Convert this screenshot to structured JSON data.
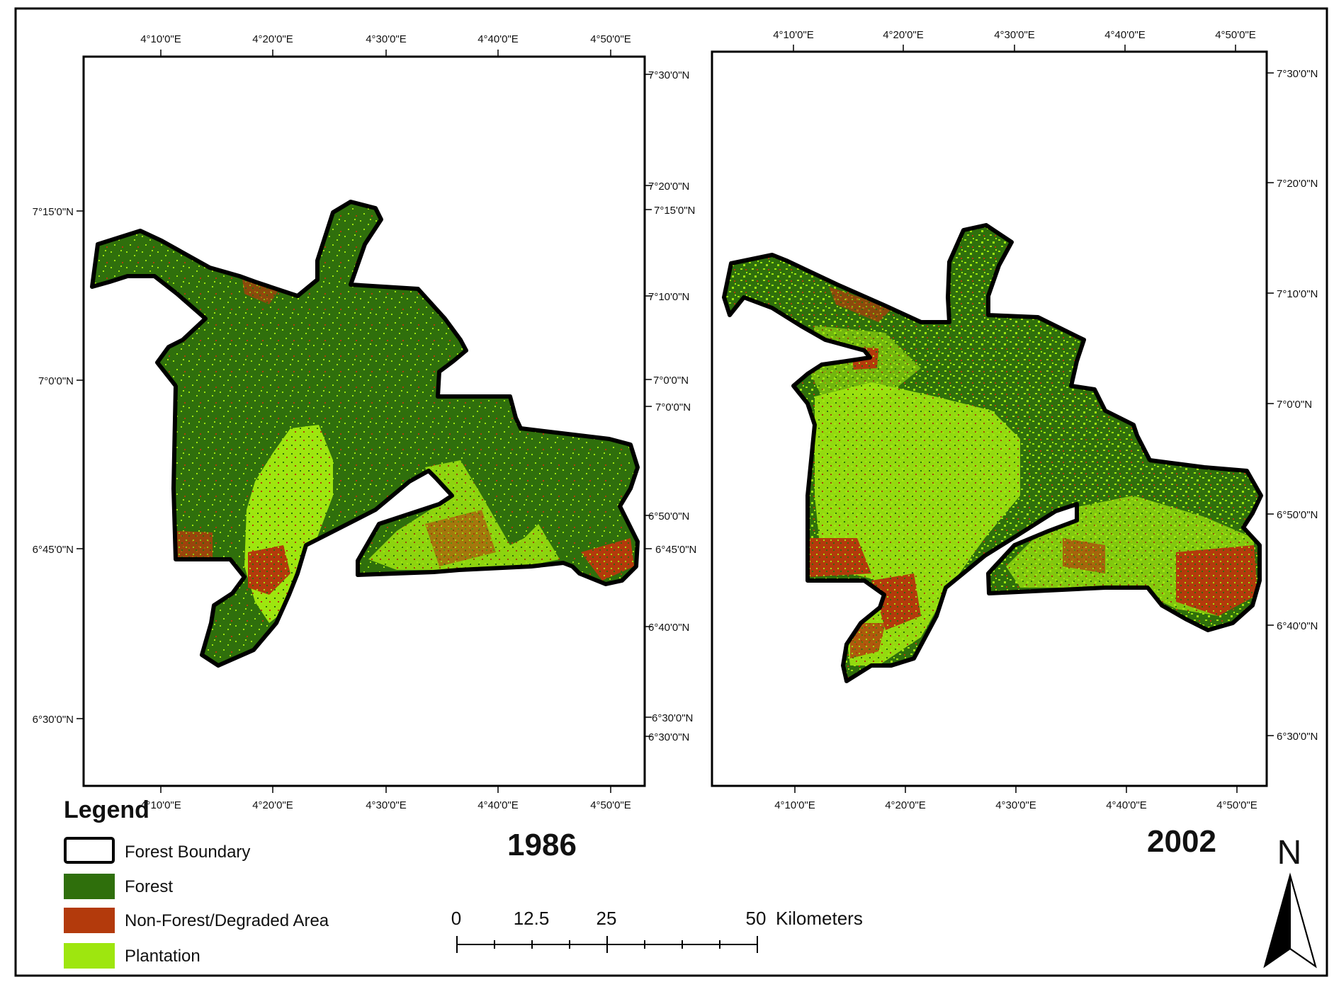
{
  "colors": {
    "forest": "#2f6f0c",
    "non_forest": "#b33a0c",
    "plantation": "#9ee60f",
    "boundary": "#000000"
  },
  "map_1986": {
    "year": "1986",
    "top_ticks": [
      "4°10'0\"E",
      "4°20'0\"E",
      "4°30'0\"E",
      "4°40'0\"E",
      "4°50'0\"E"
    ],
    "bottom_ticks": [
      "4°10'0\"E",
      "4°20'0\"E",
      "4°30'0\"E",
      "4°40'0\"E",
      "4°50'0\"E"
    ],
    "left_ticks": [
      "7°15'0\"N",
      "7°0'0\"N",
      "6°45'0\"N",
      "6°30'0\"N"
    ],
    "right_ticks": [
      "7°30'0\"N",
      "7°20'0\"N",
      "7°15'0\"N",
      "7°10'0\"N",
      "7°0'0\"N",
      "7°0'0\"N",
      "6°50'0\"N",
      "6°45'0\"N",
      "6°40'0\"N",
      "6°30'0\"N",
      "6°30'0\"N"
    ]
  },
  "map_2002": {
    "year": "2002",
    "top_ticks": [
      "4°10'0\"E",
      "4°20'0\"E",
      "4°30'0\"E",
      "4°40'0\"E",
      "4°50'0\"E"
    ],
    "bottom_ticks": [
      "4°10'0\"E",
      "4°20'0\"E",
      "4°30'0\"E",
      "4°40'0\"E",
      "4°50'0\"E"
    ],
    "right_ticks": [
      "7°30'0\"N",
      "7°20'0\"N",
      "7°10'0\"N",
      "7°0'0\"N",
      "6°50'0\"N",
      "6°40'0\"N",
      "6°30'0\"N"
    ]
  },
  "legend": {
    "title": "Legend",
    "items": [
      {
        "label": "Forest Boundary",
        "color": "#ffffff"
      },
      {
        "label": "Forest",
        "color": "#2f6f0c"
      },
      {
        "label": "Non-Forest/Degraded Area",
        "color": "#b33a0c"
      },
      {
        "label": "Plantation",
        "color": "#9ee60f"
      }
    ]
  },
  "scale_bar": {
    "labels": [
      "0",
      "12.5",
      "25",
      "50"
    ],
    "unit": "Kilometers"
  },
  "north_arrow": {
    "label": "N"
  }
}
